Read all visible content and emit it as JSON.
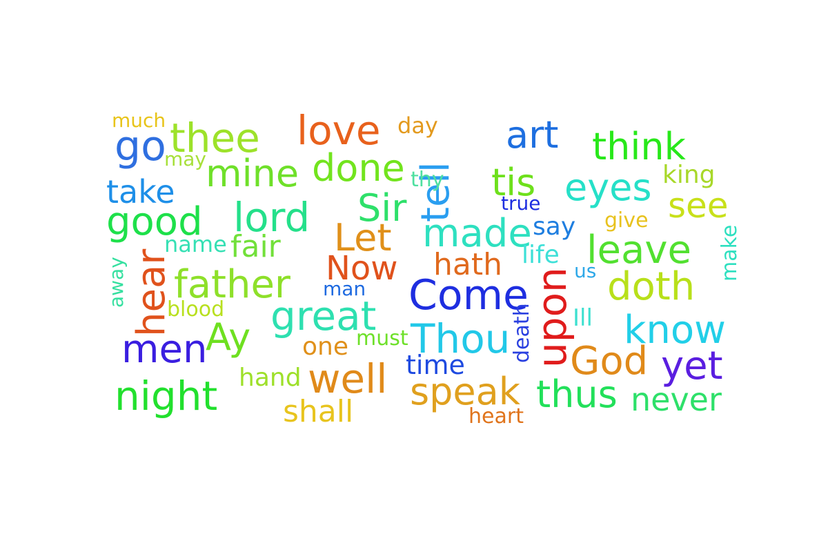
{
  "word_cloud": {
    "words": [
      {
        "text": "much",
        "color": "#e8c41a"
      },
      {
        "text": "go",
        "color": "#2f6fe0"
      },
      {
        "text": "thee",
        "color": "#9de22a"
      },
      {
        "text": "may",
        "color": "#a7e03a"
      },
      {
        "text": "love",
        "color": "#e8611c"
      },
      {
        "text": "day",
        "color": "#e39a1e"
      },
      {
        "text": "tell",
        "color": "#2a9ef0"
      },
      {
        "text": "art",
        "color": "#1e6fe0"
      },
      {
        "text": "think",
        "color": "#28e81a"
      },
      {
        "text": "mine",
        "color": "#6fe02a"
      },
      {
        "text": "done",
        "color": "#72e41e"
      },
      {
        "text": "thy",
        "color": "#4fe0a0"
      },
      {
        "text": "tis",
        "color": "#6ee01c"
      },
      {
        "text": "eyes",
        "color": "#26e0c8"
      },
      {
        "text": "king",
        "color": "#a8d82a"
      },
      {
        "text": "take",
        "color": "#1e8fe8"
      },
      {
        "text": "see",
        "color": "#c8e01a"
      },
      {
        "text": "good",
        "color": "#1ee04a"
      },
      {
        "text": "lord",
        "color": "#24e08a"
      },
      {
        "text": "Sir",
        "color": "#2ee06a"
      },
      {
        "text": "true",
        "color": "#1e2ee0"
      },
      {
        "text": "give",
        "color": "#e8c21e"
      },
      {
        "text": "say",
        "color": "#1e7ee0"
      },
      {
        "text": "made",
        "color": "#2ee0c0"
      },
      {
        "text": "Let",
        "color": "#e0901a"
      },
      {
        "text": "name",
        "color": "#36e0b4"
      },
      {
        "text": "fair",
        "color": "#72e03a"
      },
      {
        "text": "hear",
        "color": "#e0521c"
      },
      {
        "text": "leave",
        "color": "#52e030"
      },
      {
        "text": "life",
        "color": "#3ee0d8"
      },
      {
        "text": "make",
        "color": "#2ee0c0"
      },
      {
        "text": "Now",
        "color": "#e0521c"
      },
      {
        "text": "hath",
        "color": "#e06a1e"
      },
      {
        "text": "us",
        "color": "#2ea8e8"
      },
      {
        "text": "away",
        "color": "#36e0a0"
      },
      {
        "text": "father",
        "color": "#8ee02a"
      },
      {
        "text": "man",
        "color": "#1e6ae0"
      },
      {
        "text": "upon",
        "color": "#e01c1c"
      },
      {
        "text": "doth",
        "color": "#b8e01a"
      },
      {
        "text": "Come",
        "color": "#1e2ee0"
      },
      {
        "text": "blood",
        "color": "#b8e01e"
      },
      {
        "text": "great",
        "color": "#2ee0b0"
      },
      {
        "text": "death",
        "color": "#2a40e0"
      },
      {
        "text": "Ill",
        "color": "#3ee0d0"
      },
      {
        "text": "know",
        "color": "#22cfe8"
      },
      {
        "text": "Ay",
        "color": "#6ee020"
      },
      {
        "text": "men",
        "color": "#3a1ee0"
      },
      {
        "text": "Thou",
        "color": "#22c8e8"
      },
      {
        "text": "one",
        "color": "#e0901a"
      },
      {
        "text": "must",
        "color": "#6ee02a"
      },
      {
        "text": "God",
        "color": "#e08a1a"
      },
      {
        "text": "yet",
        "color": "#5a1ee0"
      },
      {
        "text": "time",
        "color": "#1e4ae0"
      },
      {
        "text": "hand",
        "color": "#9ee02a"
      },
      {
        "text": "well",
        "color": "#e08a1a"
      },
      {
        "text": "night",
        "color": "#22e02e"
      },
      {
        "text": "speak",
        "color": "#e0a01e"
      },
      {
        "text": "thus",
        "color": "#22e05a"
      },
      {
        "text": "never",
        "color": "#2ee06a"
      },
      {
        "text": "shall",
        "color": "#e8c41e"
      },
      {
        "text": "heart",
        "color": "#e0741c"
      }
    ]
  }
}
